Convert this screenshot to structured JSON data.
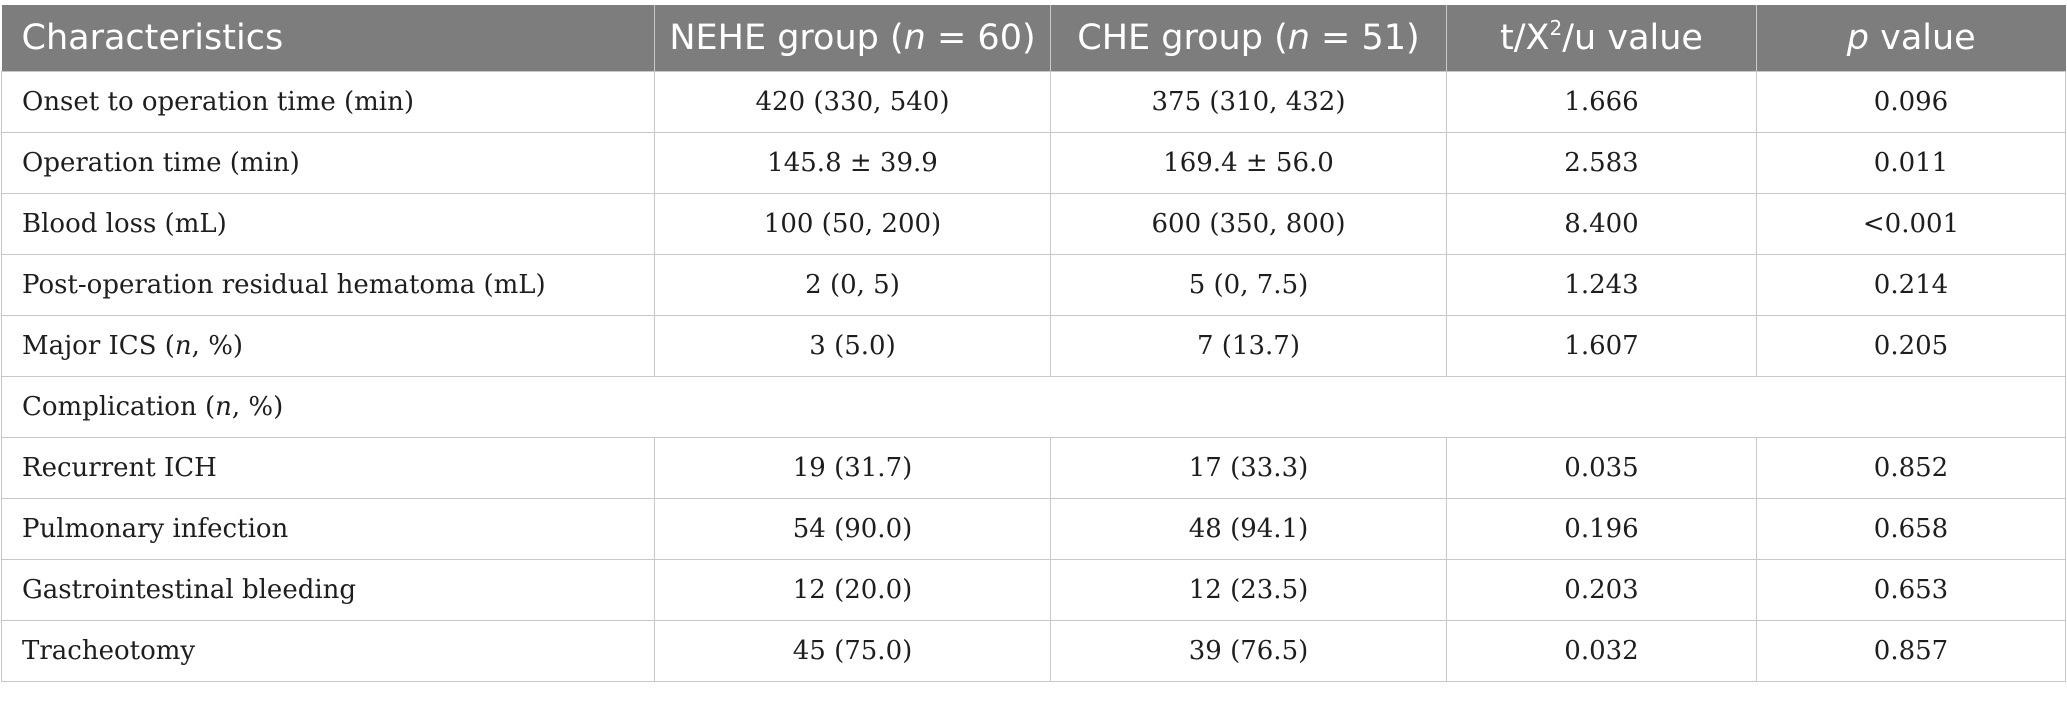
{
  "table": {
    "headers": {
      "characteristics": "Characteristics",
      "nehe_prefix": "NEHE group (",
      "nehe_n": "n",
      "nehe_suffix": " = 60)",
      "che_prefix": "CHE group (",
      "che_n": "n",
      "che_suffix": " = 51)",
      "stat_prefix": "t/X",
      "stat_sup": "2",
      "stat_suffix": "/u value",
      "p_letter": "p",
      "p_suffix": " value"
    },
    "rows": [
      {
        "label": "Onset to operation time (min)",
        "nehe": "420 (330, 540)",
        "che": "375 (310, 432)",
        "stat": "1.666",
        "p": "0.096"
      },
      {
        "label": "Operation time (min)",
        "nehe": "145.8 ± 39.9",
        "che": "169.4 ± 56.0",
        "stat": "2.583",
        "p": "0.011"
      },
      {
        "label": "Blood loss (mL)",
        "nehe": "100 (50, 200)",
        "che": "600 (350, 800)",
        "stat": "8.400",
        "p": "<0.001"
      },
      {
        "label": "Post-operation residual hematoma (mL)",
        "nehe": "2 (0, 5)",
        "che": "5 (0, 7.5)",
        "stat": "1.243",
        "p": "0.214"
      },
      {
        "label_prefix": "Major ICS (",
        "label_n": "n",
        "label_suffix": ", %)",
        "nehe": "3 (5.0)",
        "che": "7 (13.7)",
        "stat": "1.607",
        "p": "0.205"
      },
      {
        "label_prefix": "Complication (",
        "label_n": "n",
        "label_suffix": ", %)"
      },
      {
        "label": "Recurrent ICH",
        "nehe": "19 (31.7)",
        "che": "17 (33.3)",
        "stat": "0.035",
        "p": "0.852"
      },
      {
        "label": "Pulmonary infection",
        "nehe": "54 (90.0)",
        "che": "48 (94.1)",
        "stat": "0.196",
        "p": "0.658"
      },
      {
        "label": "Gastrointestinal bleeding",
        "nehe": "12 (20.0)",
        "che": "12 (23.5)",
        "stat": "0.203",
        "p": "0.653"
      },
      {
        "label": "Tracheotomy",
        "nehe": "45 (75.0)",
        "che": "39 (76.5)",
        "stat": "0.032",
        "p": "0.857"
      }
    ]
  }
}
